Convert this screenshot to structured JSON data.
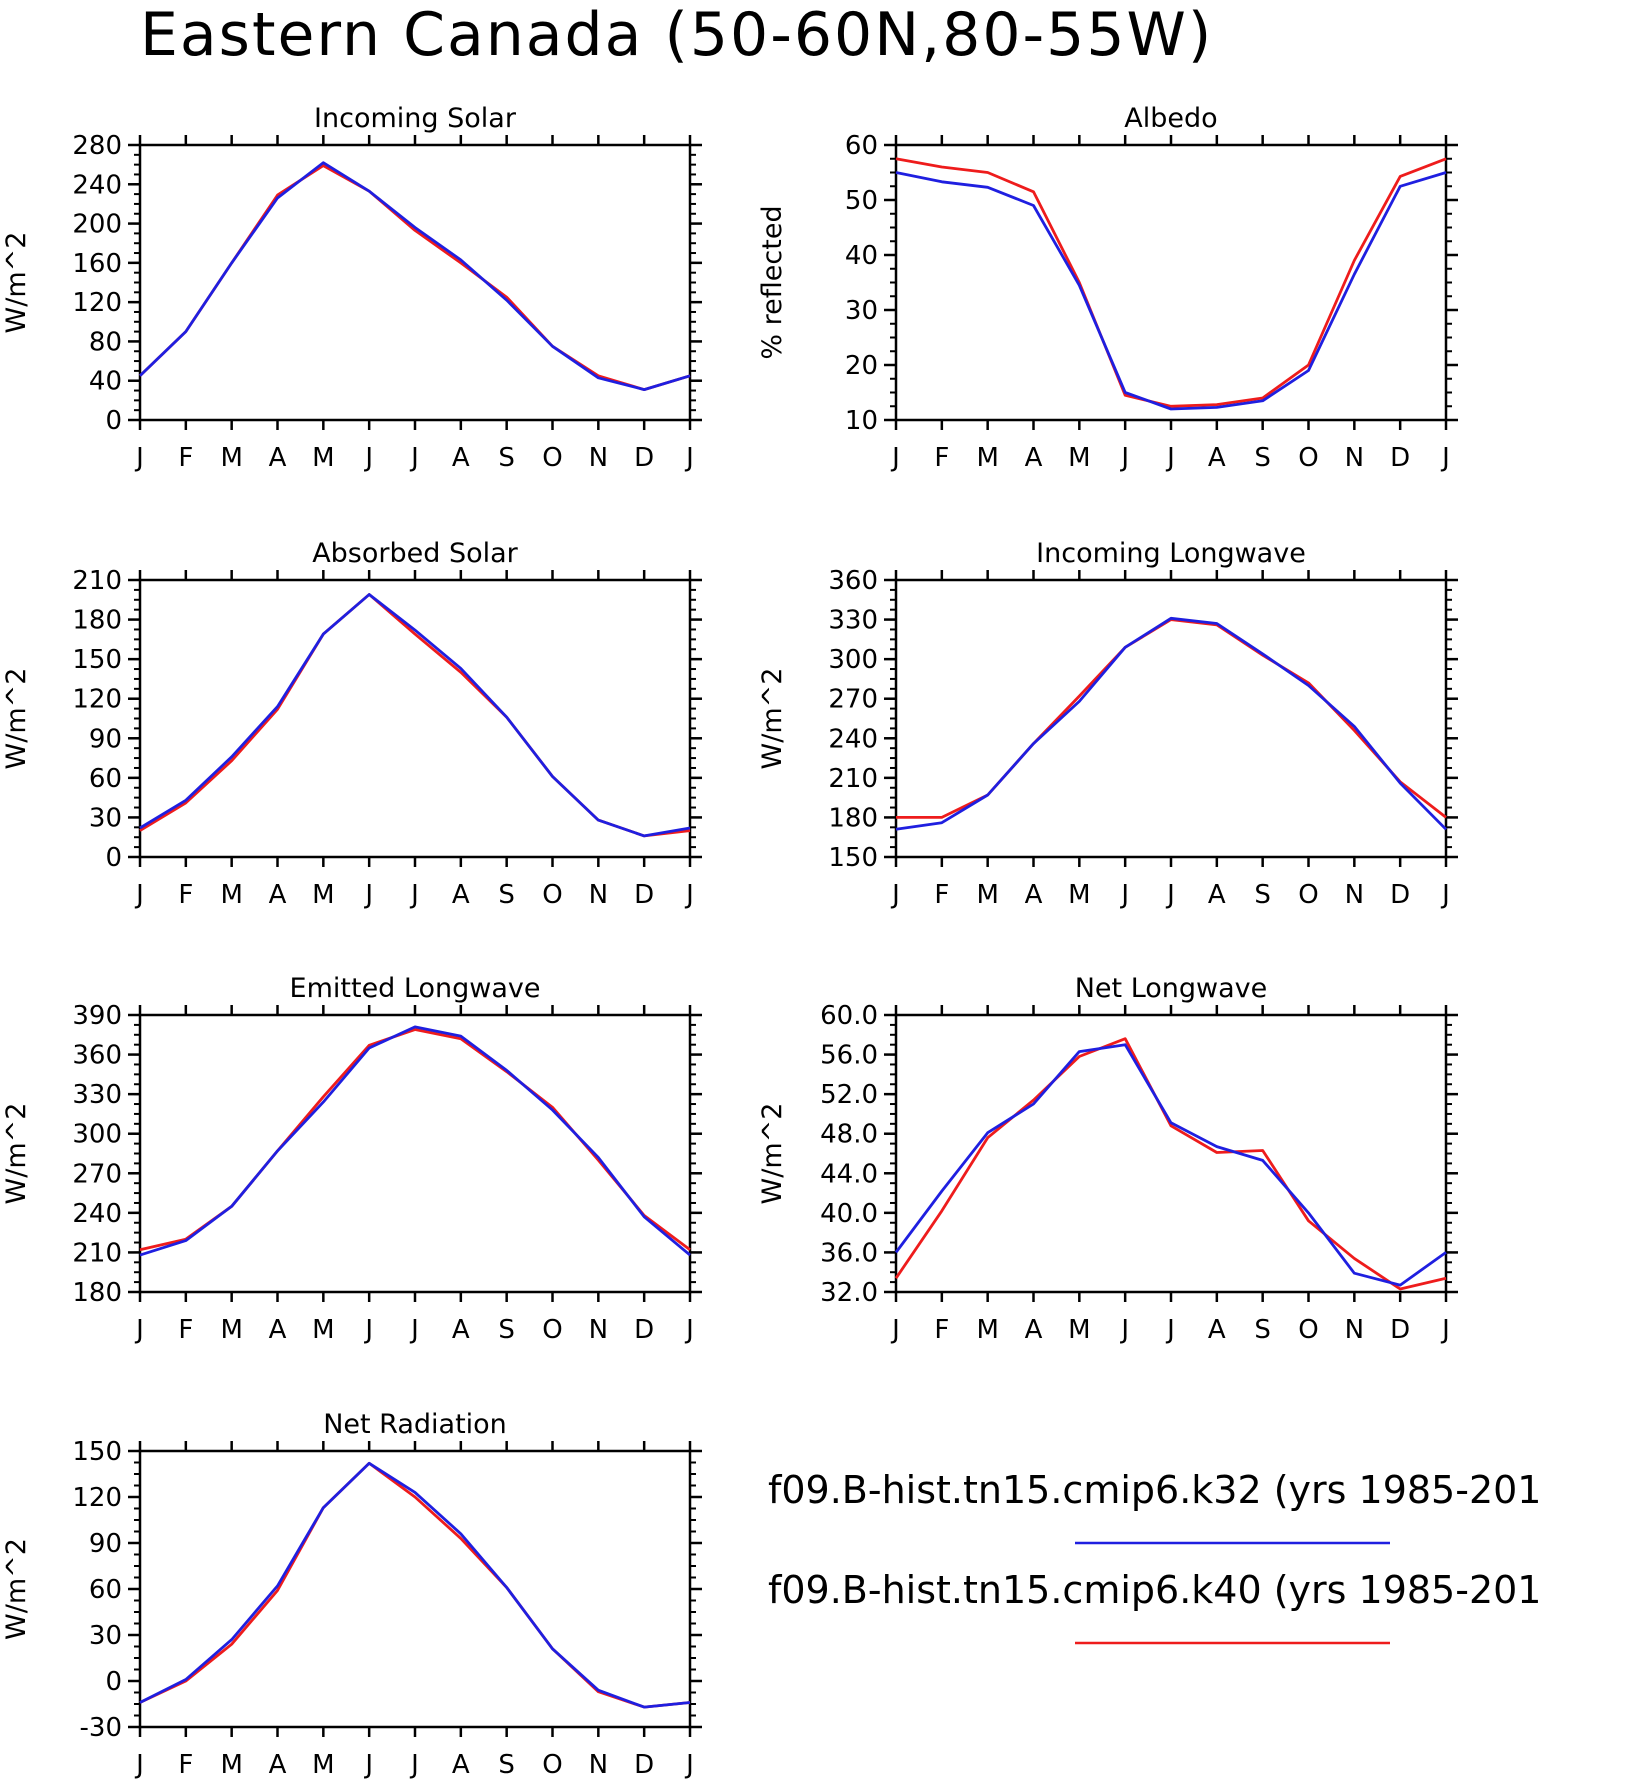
{
  "title": "Eastern Canada (50-60N,80-55W)",
  "month_labels": [
    "J",
    "F",
    "M",
    "A",
    "M",
    "J",
    "J",
    "A",
    "S",
    "O",
    "N",
    "D",
    "J"
  ],
  "colors": {
    "k32": "#1f1fe0",
    "k40": "#ee1c1c"
  },
  "legend": [
    {
      "label": "f09.B-hist.tn15.cmip6.k32 (yrs 1985-201",
      "color": "#1f1fe0"
    },
    {
      "label": "f09.B-hist.tn15.cmip6.k40 (yrs 1985-201",
      "color": "#ee1c1c"
    }
  ],
  "chart_data": [
    {
      "type": "line",
      "title": "Incoming Solar",
      "ylabel": "W/m^2",
      "ylim": [
        0,
        280
      ],
      "yticks": [
        0,
        40,
        80,
        120,
        160,
        200,
        240,
        280
      ],
      "ytick_format": "0",
      "x": [
        "J",
        "F",
        "M",
        "A",
        "M",
        "J",
        "J",
        "A",
        "S",
        "O",
        "N",
        "D",
        "J"
      ],
      "series": [
        {
          "name": "f09.B-hist.tn15.cmip6.k40 (yrs 1985-201",
          "color": "#ee1c1c",
          "values": [
            45,
            90,
            160,
            229,
            259,
            233,
            193,
            160,
            125,
            75,
            45,
            31,
            45
          ]
        },
        {
          "name": "f09.B-hist.tn15.cmip6.k32 (yrs 1985-201",
          "color": "#1f1fe0",
          "values": [
            45,
            90,
            160,
            226,
            262,
            233,
            196,
            163,
            122,
            75,
            43,
            31,
            45
          ]
        }
      ]
    },
    {
      "type": "line",
      "title": "Albedo",
      "ylabel": "% reflected",
      "ylim": [
        10,
        60
      ],
      "yticks": [
        10,
        20,
        30,
        40,
        50,
        60
      ],
      "ytick_format": "0",
      "x": [
        "J",
        "F",
        "M",
        "A",
        "M",
        "J",
        "J",
        "A",
        "S",
        "O",
        "N",
        "D",
        "J"
      ],
      "series": [
        {
          "name": "f09.B-hist.tn15.cmip6.k40 (yrs 1985-201",
          "color": "#ee1c1c",
          "values": [
            57.5,
            56,
            55,
            51.5,
            35,
            14.5,
            12.5,
            12.8,
            14,
            20,
            39,
            54.3,
            57.5
          ]
        },
        {
          "name": "f09.B-hist.tn15.cmip6.k32 (yrs 1985-201",
          "color": "#1f1fe0",
          "values": [
            55,
            53.3,
            52.3,
            49,
            34.5,
            15,
            12,
            12.3,
            13.5,
            19,
            36.5,
            52.5,
            55
          ]
        }
      ]
    },
    {
      "type": "line",
      "title": "Absorbed Solar",
      "ylabel": "W/m^2",
      "ylim": [
        0,
        210
      ],
      "yticks": [
        0,
        30,
        60,
        90,
        120,
        150,
        180,
        210
      ],
      "ytick_format": "0",
      "x": [
        "J",
        "F",
        "M",
        "A",
        "M",
        "J",
        "J",
        "A",
        "S",
        "O",
        "N",
        "D",
        "J"
      ],
      "series": [
        {
          "name": "f09.B-hist.tn15.cmip6.k40 (yrs 1985-201",
          "color": "#ee1c1c",
          "values": [
            20,
            41,
            73,
            112,
            169,
            199,
            169,
            140,
            106,
            61,
            28,
            16,
            20
          ]
        },
        {
          "name": "f09.B-hist.tn15.cmip6.k32 (yrs 1985-201",
          "color": "#1f1fe0",
          "values": [
            22,
            43,
            76,
            114,
            169,
            199,
            172,
            143,
            106,
            61,
            28,
            16,
            22
          ]
        }
      ]
    },
    {
      "type": "line",
      "title": "Incoming Longwave",
      "ylabel": "W/m^2",
      "ylim": [
        150,
        360
      ],
      "yticks": [
        150,
        180,
        210,
        240,
        270,
        300,
        330,
        360
      ],
      "ytick_format": "0",
      "x": [
        "J",
        "F",
        "M",
        "A",
        "M",
        "J",
        "J",
        "A",
        "S",
        "O",
        "N",
        "D",
        "J"
      ],
      "series": [
        {
          "name": "f09.B-hist.tn15.cmip6.k40 (yrs 1985-201",
          "color": "#ee1c1c",
          "values": [
            180,
            180,
            197,
            236,
            272,
            309,
            330,
            326,
            303,
            282,
            246,
            207,
            180
          ]
        },
        {
          "name": "f09.B-hist.tn15.cmip6.k32 (yrs 1985-201",
          "color": "#1f1fe0",
          "values": [
            171,
            176,
            197,
            236,
            268,
            309,
            331,
            327,
            304,
            280,
            249,
            206,
            171
          ]
        }
      ]
    },
    {
      "type": "line",
      "title": "Emitted Longwave",
      "ylabel": "W/m^2",
      "ylim": [
        180,
        390
      ],
      "yticks": [
        180,
        210,
        240,
        270,
        300,
        330,
        360,
        390
      ],
      "ytick_format": "0",
      "x": [
        "J",
        "F",
        "M",
        "A",
        "M",
        "J",
        "J",
        "A",
        "S",
        "O",
        "N",
        "D",
        "J"
      ],
      "series": [
        {
          "name": "f09.B-hist.tn15.cmip6.k40 (yrs 1985-201",
          "color": "#ee1c1c",
          "values": [
            212,
            220,
            245,
            287,
            328,
            367,
            379,
            372,
            347,
            320,
            280,
            238,
            212
          ]
        },
        {
          "name": "f09.B-hist.tn15.cmip6.k32 (yrs 1985-201",
          "color": "#1f1fe0",
          "values": [
            208,
            219,
            245,
            287,
            324,
            365,
            381,
            374,
            348,
            318,
            282,
            237,
            208
          ]
        }
      ]
    },
    {
      "type": "line",
      "title": "Net Longwave",
      "ylabel": "W/m^2",
      "ylim": [
        32,
        60
      ],
      "yticks": [
        32,
        36,
        40,
        44,
        48,
        52,
        56,
        60
      ],
      "ytick_format": "0.0",
      "x": [
        "J",
        "F",
        "M",
        "A",
        "M",
        "J",
        "J",
        "A",
        "S",
        "O",
        "N",
        "D",
        "J"
      ],
      "series": [
        {
          "name": "f09.B-hist.tn15.cmip6.k40 (yrs 1985-201",
          "color": "#ee1c1c",
          "values": [
            33.4,
            40.2,
            47.6,
            51.4,
            55.8,
            57.6,
            48.8,
            46.1,
            46.3,
            39.2,
            35.4,
            32.3,
            33.4
          ]
        },
        {
          "name": "f09.B-hist.tn15.cmip6.k32 (yrs 1985-201",
          "color": "#1f1fe0",
          "values": [
            36,
            42.2,
            48.1,
            51,
            56.3,
            57,
            49.1,
            46.7,
            45.3,
            40,
            33.9,
            32.7,
            36
          ]
        }
      ]
    },
    {
      "type": "line",
      "title": "Net Radiation",
      "ylabel": "W/m^2",
      "ylim": [
        -30,
        150
      ],
      "yticks": [
        -30,
        0,
        30,
        60,
        90,
        120,
        150
      ],
      "ytick_format": "0",
      "x": [
        "J",
        "F",
        "M",
        "A",
        "M",
        "J",
        "J",
        "A",
        "S",
        "O",
        "N",
        "D",
        "J"
      ],
      "series": [
        {
          "name": "f09.B-hist.tn15.cmip6.k40 (yrs 1985-201",
          "color": "#ee1c1c",
          "values": [
            -14,
            0,
            24,
            59,
            113,
            142,
            120,
            93,
            61,
            21,
            -7,
            -17,
            -14
          ]
        },
        {
          "name": "f09.B-hist.tn15.cmip6.k32 (yrs 1985-201",
          "color": "#1f1fe0",
          "values": [
            -14,
            1,
            27,
            62,
            113,
            142,
            123,
            96,
            61,
            21,
            -6,
            -17,
            -14
          ]
        }
      ]
    }
  ]
}
